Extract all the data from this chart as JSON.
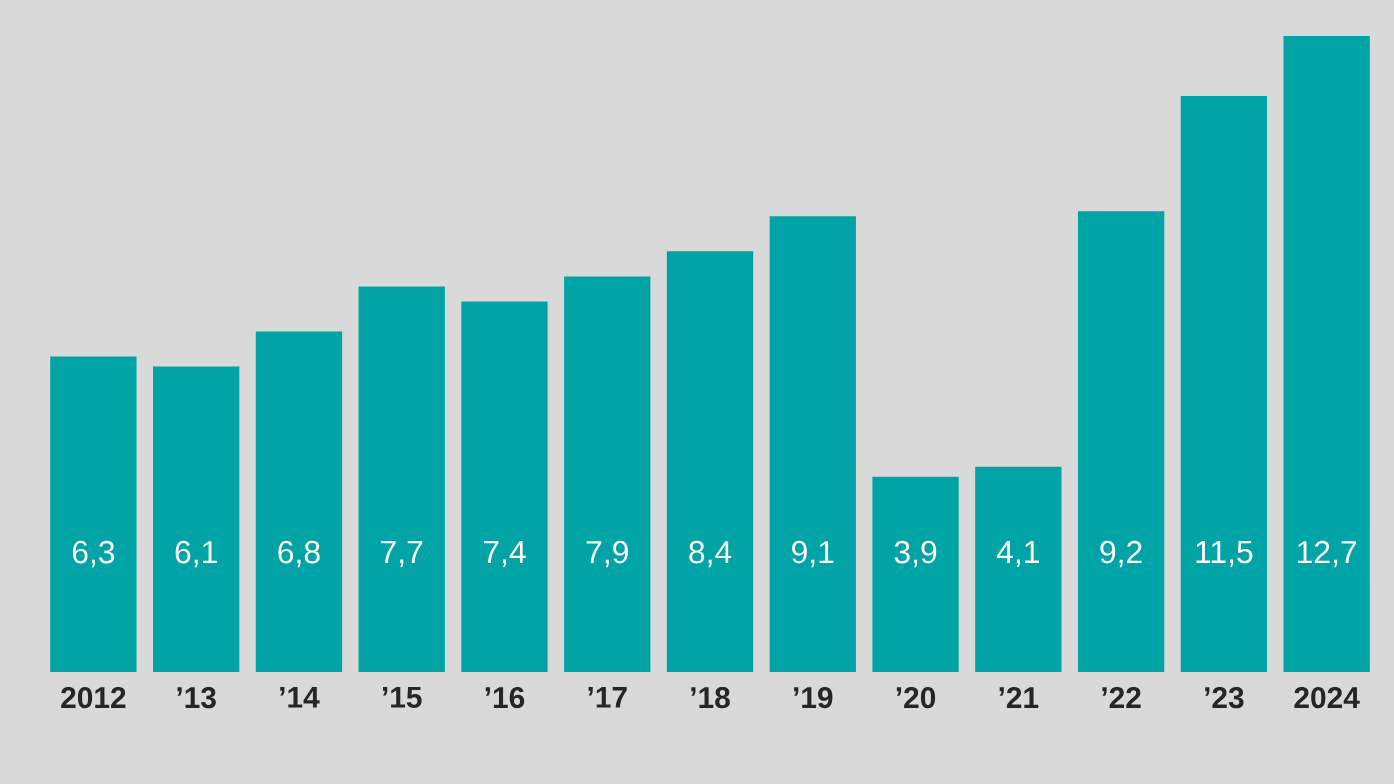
{
  "chart_data": {
    "type": "bar",
    "categories": [
      "2012",
      "’13",
      "’14",
      "’15",
      "’16",
      "’17",
      "’18",
      "’19",
      "’20",
      "’21",
      "’22",
      "’23",
      "2024"
    ],
    "values": [
      6.3,
      6.1,
      6.8,
      7.7,
      7.4,
      7.9,
      8.4,
      9.1,
      3.9,
      4.1,
      9.2,
      11.5,
      12.7
    ],
    "value_labels": [
      "6,3",
      "6,1",
      "6,8",
      "7,7",
      "7,4",
      "7,9",
      "8,4",
      "9,1",
      "3,9",
      "4,1",
      "9,2",
      "11,5",
      "12,7"
    ],
    "color": "#00a4a6"
  }
}
